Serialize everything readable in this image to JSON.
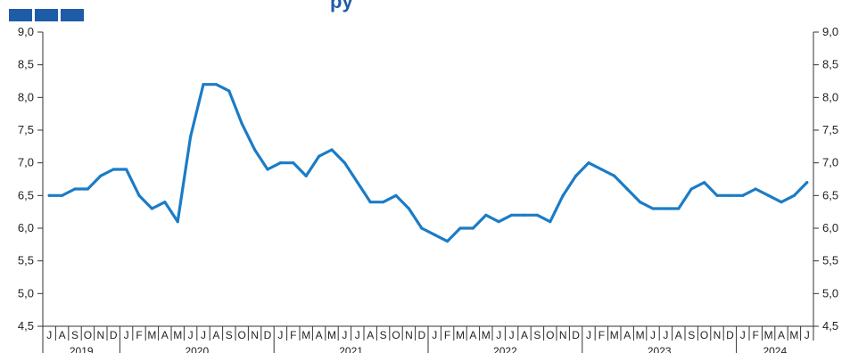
{
  "header": {
    "title_fragment": "py"
  },
  "colors": {
    "line": "#1b7cc6",
    "axis": "#333333",
    "logo": "#1f5ca8"
  },
  "chart_data": {
    "type": "line",
    "title": "",
    "xlabel": "",
    "ylabel": "",
    "ylim": [
      4.5,
      9.0
    ],
    "y_ticks": [
      4.5,
      5.0,
      5.5,
      6.0,
      6.5,
      7.0,
      7.5,
      8.0,
      8.5,
      9.0
    ],
    "y_tick_labels": [
      "4,5",
      "5,0",
      "5,5",
      "6,0",
      "6,5",
      "7,0",
      "7,5",
      "8,0",
      "8,5",
      "9,0"
    ],
    "y_axis_right": true,
    "grid": false,
    "month_labels": [
      "J",
      "A",
      "S",
      "O",
      "N",
      "D",
      "J",
      "F",
      "M",
      "A",
      "M",
      "J",
      "J",
      "A",
      "S",
      "O",
      "N",
      "D",
      "J",
      "F",
      "M",
      "A",
      "M",
      "J",
      "J",
      "A",
      "S",
      "O",
      "N",
      "D",
      "J",
      "F",
      "M",
      "A",
      "M",
      "J",
      "J",
      "A",
      "S",
      "O",
      "N",
      "D",
      "J",
      "F",
      "M",
      "A",
      "M",
      "J",
      "J",
      "A",
      "S",
      "O",
      "N",
      "D",
      "J",
      "F",
      "M",
      "A",
      "M",
      "J"
    ],
    "years": [
      {
        "label": "2019",
        "start": 0,
        "end": 6
      },
      {
        "label": "2020",
        "start": 6,
        "end": 18
      },
      {
        "label": "2021",
        "start": 18,
        "end": 30
      },
      {
        "label": "2022",
        "start": 30,
        "end": 42
      },
      {
        "label": "2023",
        "start": 42,
        "end": 54
      },
      {
        "label": "2024",
        "start": 54,
        "end": 60
      }
    ],
    "series": [
      {
        "values": [
          6.5,
          6.5,
          6.6,
          6.6,
          6.8,
          6.9,
          6.9,
          6.5,
          6.3,
          6.4,
          6.1,
          7.4,
          8.2,
          8.2,
          8.1,
          7.6,
          7.2,
          6.9,
          7.0,
          7.0,
          6.8,
          7.1,
          7.2,
          7.0,
          6.7,
          6.4,
          6.4,
          6.5,
          6.3,
          6.0,
          5.9,
          5.8,
          6.0,
          6.0,
          6.2,
          6.1,
          6.2,
          6.2,
          6.2,
          6.1,
          6.5,
          6.8,
          7.0,
          6.9,
          6.8,
          6.6,
          6.4,
          6.3,
          6.3,
          6.3,
          6.6,
          6.7,
          6.5,
          6.5,
          6.5,
          6.6,
          6.5,
          6.4,
          6.5,
          6.7
        ]
      }
    ]
  }
}
